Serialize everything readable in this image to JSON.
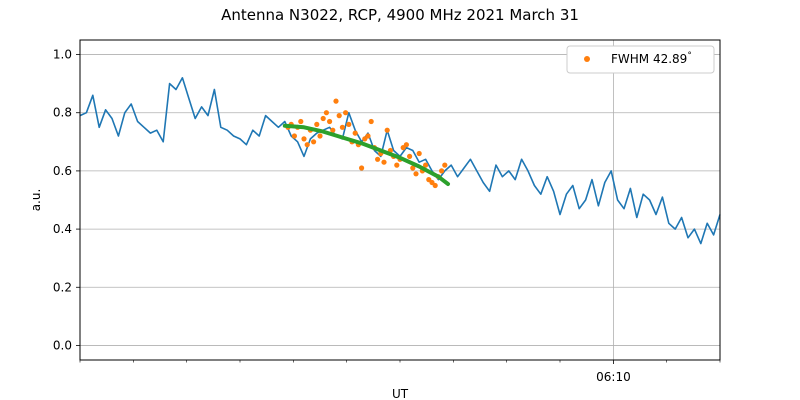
{
  "chart_data": {
    "type": "line",
    "title": "Antenna N3022, RCP, 4900 MHz 2021 March 31",
    "xlabel": "UT",
    "ylabel": "a.u.",
    "xlim_minutes": [
      6.0,
      6.2
    ],
    "ylim": [
      -0.05,
      1.05
    ],
    "yticks": [
      0.0,
      0.2,
      0.4,
      0.6,
      0.8,
      1.0
    ],
    "ytick_labels": [
      "0.0",
      "0.2",
      "0.4",
      "0.6",
      "0.8",
      "1.0"
    ],
    "xtick_major": [
      {
        "value": 6.1667,
        "label": "06:10"
      }
    ],
    "xtick_minor": [
      6.0,
      6.0167,
      6.0333,
      6.05,
      6.0667,
      6.0833,
      6.1,
      6.1167,
      6.1333,
      6.15,
      6.1833,
      6.2
    ],
    "grid": true,
    "legend_position": "top-right",
    "colors": {
      "signal": "#1f77b4",
      "points": "#ff7f0e",
      "fit": "#2ca02c"
    },
    "series": [
      {
        "role": "signal",
        "x": [
          6.0,
          6.002,
          6.004,
          6.006,
          6.008,
          6.01,
          6.012,
          6.014,
          6.016,
          6.018,
          6.02,
          6.022,
          6.024,
          6.026,
          6.028,
          6.03,
          6.032,
          6.034,
          6.036,
          6.038,
          6.04,
          6.042,
          6.044,
          6.046,
          6.048,
          6.05,
          6.052,
          6.054,
          6.056,
          6.058,
          6.06,
          6.062,
          6.064,
          6.066,
          6.068,
          6.07,
          6.072,
          6.074,
          6.076,
          6.078,
          6.08,
          6.082,
          6.084,
          6.086,
          6.088,
          6.09,
          6.092,
          6.094,
          6.096,
          6.098,
          6.1,
          6.102,
          6.104,
          6.106,
          6.108,
          6.11,
          6.112,
          6.114,
          6.116,
          6.118,
          6.12,
          6.122,
          6.124,
          6.126,
          6.128,
          6.13,
          6.132,
          6.134,
          6.136,
          6.138,
          6.14,
          6.142,
          6.144,
          6.146,
          6.148,
          6.15,
          6.152,
          6.154,
          6.156,
          6.158,
          6.16,
          6.162,
          6.164,
          6.166,
          6.168,
          6.17,
          6.172,
          6.174,
          6.176,
          6.178,
          6.18,
          6.182,
          6.184,
          6.186,
          6.188,
          6.19,
          6.192,
          6.194,
          6.196,
          6.198,
          6.2
        ],
        "values": [
          0.79,
          0.8,
          0.86,
          0.75,
          0.81,
          0.78,
          0.72,
          0.8,
          0.83,
          0.77,
          0.75,
          0.73,
          0.74,
          0.7,
          0.9,
          0.88,
          0.92,
          0.85,
          0.78,
          0.82,
          0.79,
          0.88,
          0.75,
          0.74,
          0.72,
          0.71,
          0.69,
          0.74,
          0.72,
          0.79,
          0.77,
          0.75,
          0.77,
          0.72,
          0.7,
          0.65,
          0.71,
          0.73,
          0.74,
          0.75,
          0.72,
          0.71,
          0.8,
          0.74,
          0.7,
          0.73,
          0.67,
          0.65,
          0.74,
          0.67,
          0.65,
          0.68,
          0.67,
          0.63,
          0.64,
          0.6,
          0.57,
          0.6,
          0.62,
          0.58,
          0.61,
          0.64,
          0.6,
          0.56,
          0.53,
          0.62,
          0.58,
          0.6,
          0.57,
          0.64,
          0.6,
          0.55,
          0.52,
          0.58,
          0.53,
          0.45,
          0.52,
          0.55,
          0.47,
          0.5,
          0.57,
          0.48,
          0.56,
          0.6,
          0.5,
          0.47,
          0.54,
          0.44,
          0.52,
          0.5,
          0.45,
          0.51,
          0.42,
          0.4,
          0.44,
          0.37,
          0.4,
          0.35,
          0.42,
          0.38,
          0.45
        ]
      },
      {
        "role": "points",
        "name": "FWHM 42.89$^{\\circ}$",
        "x": [
          6.065,
          6.066,
          6.067,
          6.068,
          6.069,
          6.07,
          6.071,
          6.072,
          6.073,
          6.074,
          6.075,
          6.076,
          6.077,
          6.078,
          6.079,
          6.08,
          6.081,
          6.082,
          6.083,
          6.084,
          6.085,
          6.086,
          6.087,
          6.088,
          6.089,
          6.09,
          6.091,
          6.092,
          6.093,
          6.094,
          6.095,
          6.096,
          6.097,
          6.098,
          6.099,
          6.1,
          6.101,
          6.102,
          6.103,
          6.104,
          6.105,
          6.106,
          6.107,
          6.108,
          6.109,
          6.11,
          6.111,
          6.112,
          6.113,
          6.114
        ],
        "values": [
          0.75,
          0.76,
          0.72,
          0.75,
          0.77,
          0.71,
          0.69,
          0.74,
          0.7,
          0.76,
          0.72,
          0.78,
          0.8,
          0.77,
          0.74,
          0.84,
          0.79,
          0.75,
          0.8,
          0.76,
          0.7,
          0.73,
          0.69,
          0.61,
          0.71,
          0.72,
          0.77,
          0.68,
          0.64,
          0.66,
          0.63,
          0.74,
          0.67,
          0.65,
          0.62,
          0.64,
          0.68,
          0.69,
          0.65,
          0.61,
          0.59,
          0.66,
          0.6,
          0.62,
          0.57,
          0.56,
          0.55,
          0.58,
          0.6,
          0.62
        ]
      },
      {
        "role": "fit",
        "x": [
          6.064,
          6.07,
          6.076,
          6.082,
          6.088,
          6.094,
          6.1,
          6.106,
          6.112,
          6.115
        ],
        "values": [
          0.755,
          0.75,
          0.735,
          0.715,
          0.695,
          0.67,
          0.645,
          0.615,
          0.58,
          0.555
        ]
      }
    ]
  }
}
